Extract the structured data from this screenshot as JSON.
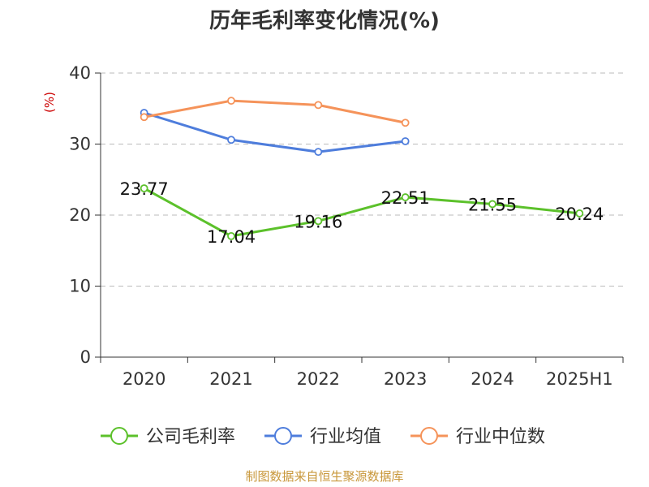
{
  "chart_data": {
    "type": "line",
    "title": "历年毛利率变化情况(%)",
    "ylabel": "(%)",
    "categories": [
      "2020",
      "2021",
      "2022",
      "2023",
      "2024",
      "2025H1"
    ],
    "ylim": [
      0,
      40
    ],
    "yticks": [
      "0",
      "10",
      "20",
      "30",
      "40"
    ],
    "grid": true,
    "legend_position": "bottom",
    "series": [
      {
        "name": "公司毛利率",
        "color": "#5cc12b",
        "values": [
          23.77,
          17.04,
          19.16,
          22.51,
          21.55,
          20.24
        ],
        "labels": [
          "23.77",
          "17.04",
          "19.16",
          "22.51",
          "21.55",
          "20.24"
        ]
      },
      {
        "name": "行业均值",
        "color": "#4e7ddc",
        "values": [
          34.4,
          30.6,
          28.9,
          30.4,
          null,
          null
        ]
      },
      {
        "name": "行业中位数",
        "color": "#f5935a",
        "values": [
          33.8,
          36.1,
          35.5,
          33.0,
          null,
          null
        ]
      }
    ]
  },
  "colors": {
    "unit_label": "#cc0000",
    "source_text": "#c8973a",
    "axis": "#333333",
    "grid": "#bbbbbb"
  },
  "source": "制图数据来自恒生聚源数据库"
}
